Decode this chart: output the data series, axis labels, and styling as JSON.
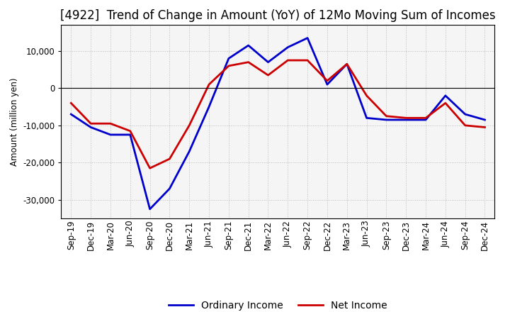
{
  "title": "[4922]  Trend of Change in Amount (YoY) of 12Mo Moving Sum of Incomes",
  "ylabel": "Amount (million yen)",
  "labels": [
    "Sep-19",
    "Dec-19",
    "Mar-20",
    "Jun-20",
    "Sep-20",
    "Dec-20",
    "Mar-21",
    "Jun-21",
    "Sep-21",
    "Dec-21",
    "Mar-22",
    "Jun-22",
    "Sep-22",
    "Dec-22",
    "Mar-23",
    "Jun-23",
    "Sep-23",
    "Dec-23",
    "Mar-24",
    "Jun-24",
    "Sep-24",
    "Dec-24"
  ],
  "ordinary_income": [
    -7000,
    -10500,
    -12500,
    -12500,
    -32500,
    -27000,
    -17000,
    -5000,
    8000,
    11500,
    7000,
    11000,
    13500,
    1000,
    6500,
    -8000,
    -8500,
    -8500,
    -8500,
    -2000,
    -7000,
    -8500
  ],
  "net_income": [
    -4000,
    -9500,
    -9500,
    -11500,
    -21500,
    -19000,
    -10000,
    1000,
    6000,
    7000,
    3500,
    7500,
    7500,
    2000,
    6500,
    -2000,
    -7500,
    -8000,
    -8000,
    -4000,
    -10000,
    -10500
  ],
  "ordinary_income_color": "#0000cc",
  "net_income_color": "#cc0000",
  "background_color": "#ffffff",
  "plot_bg_color": "#f5f5f5",
  "ylim": [
    -35000,
    17000
  ],
  "yticks": [
    -30000,
    -20000,
    -10000,
    0,
    10000
  ],
  "grid_color": "#bbbbbb",
  "title_fontsize": 12,
  "legend_fontsize": 10,
  "axis_fontsize": 8.5,
  "linewidth": 2.0
}
